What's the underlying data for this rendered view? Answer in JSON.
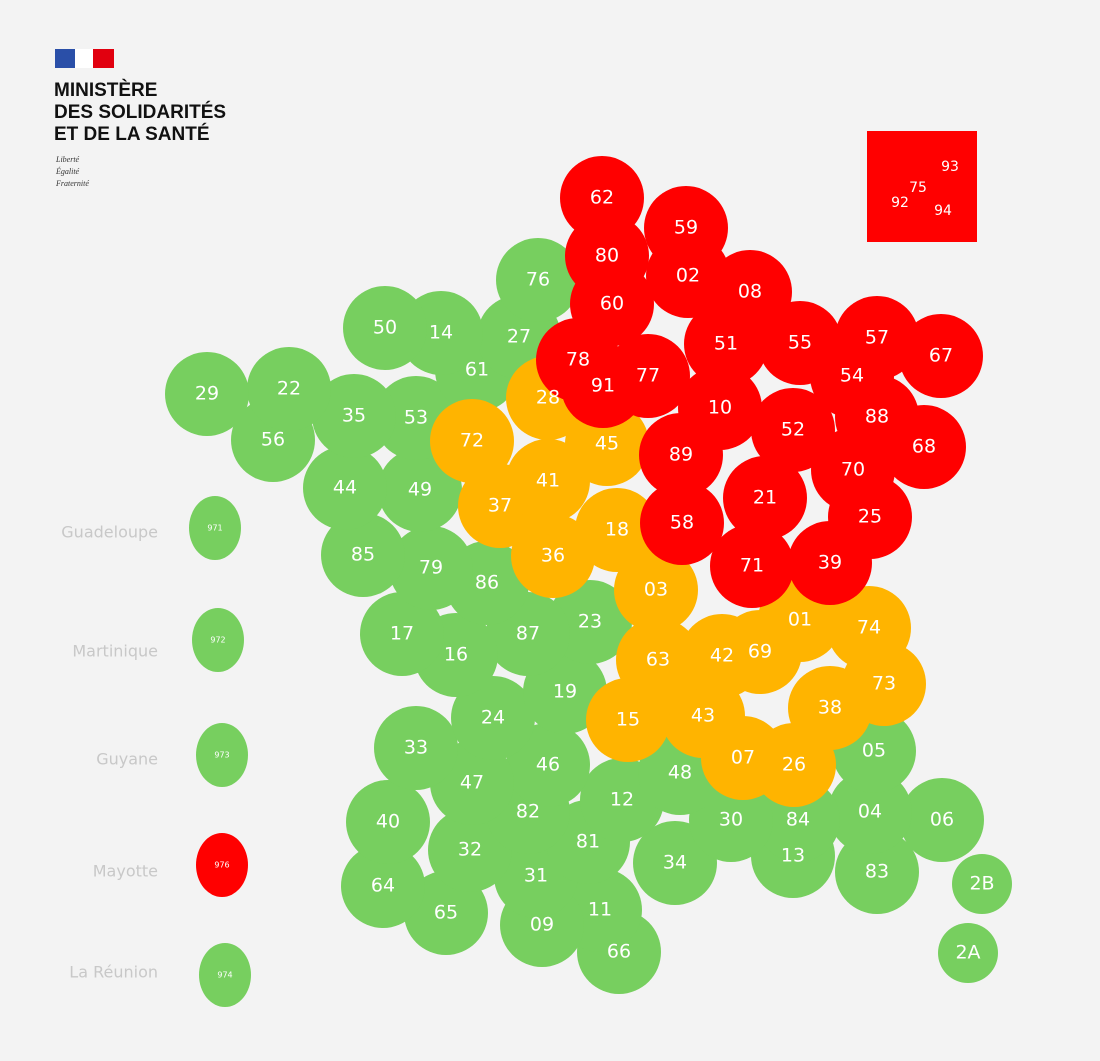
{
  "header": {
    "lines": [
      "MINISTÈRE",
      "DES SOLIDARITÉS",
      "ET DE LA SANTÉ"
    ],
    "motto": [
      "Liberté",
      "Égalité",
      "Fraternité"
    ]
  },
  "departments": [
    {
      "code": "62",
      "color": "#ff0000"
    },
    {
      "code": "59",
      "color": "#ff0000"
    },
    {
      "code": "80",
      "color": "#ff0000"
    },
    {
      "code": "02",
      "color": "#ff0000"
    },
    {
      "code": "60",
      "color": "#ff0000"
    },
    {
      "code": "08",
      "color": "#ff0000"
    },
    {
      "code": "57",
      "color": "#ff0000"
    },
    {
      "code": "67",
      "color": "#ff0000"
    },
    {
      "code": "51",
      "color": "#ff0000"
    },
    {
      "code": "55",
      "color": "#ff0000"
    },
    {
      "code": "54",
      "color": "#ff0000"
    },
    {
      "code": "78",
      "color": "#ff0000"
    },
    {
      "code": "91",
      "color": "#ff0000"
    },
    {
      "code": "77",
      "color": "#ff0000"
    },
    {
      "code": "10",
      "color": "#ff0000"
    },
    {
      "code": "52",
      "color": "#ff0000"
    },
    {
      "code": "88",
      "color": "#ff0000"
    },
    {
      "code": "68",
      "color": "#ff0000"
    },
    {
      "code": "89",
      "color": "#ff0000"
    },
    {
      "code": "70",
      "color": "#ff0000"
    },
    {
      "code": "21",
      "color": "#ff0000"
    },
    {
      "code": "25",
      "color": "#ff0000"
    },
    {
      "code": "58",
      "color": "#ff0000"
    },
    {
      "code": "71",
      "color": "#ff0000"
    },
    {
      "code": "39",
      "color": "#ff0000"
    },
    {
      "code": "93",
      "color": "#ff0000"
    },
    {
      "code": "75",
      "color": "#ff0000"
    },
    {
      "code": "92",
      "color": "#ff0000"
    },
    {
      "code": "94",
      "color": "#ff0000"
    },
    {
      "code": "28",
      "color": "#ffb400"
    },
    {
      "code": "72",
      "color": "#ffb400"
    },
    {
      "code": "45",
      "color": "#ffb400"
    },
    {
      "code": "41",
      "color": "#ffb400"
    },
    {
      "code": "37",
      "color": "#ffb400"
    },
    {
      "code": "18",
      "color": "#ffb400"
    },
    {
      "code": "36",
      "color": "#ffb400"
    },
    {
      "code": "03",
      "color": "#ffb400"
    },
    {
      "code": "01",
      "color": "#ffb400"
    },
    {
      "code": "74",
      "color": "#ffb400"
    },
    {
      "code": "63",
      "color": "#ffb400"
    },
    {
      "code": "42",
      "color": "#ffb400"
    },
    {
      "code": "69",
      "color": "#ffb400"
    },
    {
      "code": "73",
      "color": "#ffb400"
    },
    {
      "code": "15",
      "color": "#ffb400"
    },
    {
      "code": "43",
      "color": "#ffb400"
    },
    {
      "code": "38",
      "color": "#ffb400"
    },
    {
      "code": "07",
      "color": "#ffb400"
    },
    {
      "code": "26",
      "color": "#ffb400"
    },
    {
      "code": "76",
      "color": "#77cf5f"
    },
    {
      "code": "50",
      "color": "#77cf5f"
    },
    {
      "code": "14",
      "color": "#77cf5f"
    },
    {
      "code": "27",
      "color": "#77cf5f"
    },
    {
      "code": "61",
      "color": "#77cf5f"
    },
    {
      "code": "29",
      "color": "#77cf5f"
    },
    {
      "code": "22",
      "color": "#77cf5f"
    },
    {
      "code": "35",
      "color": "#77cf5f"
    },
    {
      "code": "53",
      "color": "#77cf5f"
    },
    {
      "code": "56",
      "color": "#77cf5f"
    },
    {
      "code": "44",
      "color": "#77cf5f"
    },
    {
      "code": "49",
      "color": "#77cf5f"
    },
    {
      "code": "85",
      "color": "#77cf5f"
    },
    {
      "code": "79",
      "color": "#77cf5f"
    },
    {
      "code": "86",
      "color": "#77cf5f"
    },
    {
      "code": "17",
      "color": "#77cf5f"
    },
    {
      "code": "16",
      "color": "#77cf5f"
    },
    {
      "code": "87",
      "color": "#77cf5f"
    },
    {
      "code": "23",
      "color": "#77cf5f"
    },
    {
      "code": "19",
      "color": "#77cf5f"
    },
    {
      "code": "24",
      "color": "#77cf5f"
    },
    {
      "code": "33",
      "color": "#77cf5f"
    },
    {
      "code": "47",
      "color": "#77cf5f"
    },
    {
      "code": "46",
      "color": "#77cf5f"
    },
    {
      "code": "48",
      "color": "#77cf5f"
    },
    {
      "code": "05",
      "color": "#77cf5f"
    },
    {
      "code": "12",
      "color": "#77cf5f"
    },
    {
      "code": "82",
      "color": "#77cf5f"
    },
    {
      "code": "40",
      "color": "#77cf5f"
    },
    {
      "code": "30",
      "color": "#77cf5f"
    },
    {
      "code": "84",
      "color": "#77cf5f"
    },
    {
      "code": "04",
      "color": "#77cf5f"
    },
    {
      "code": "06",
      "color": "#77cf5f"
    },
    {
      "code": "81",
      "color": "#77cf5f"
    },
    {
      "code": "32",
      "color": "#77cf5f"
    },
    {
      "code": "13",
      "color": "#77cf5f"
    },
    {
      "code": "34",
      "color": "#77cf5f"
    },
    {
      "code": "83",
      "color": "#77cf5f"
    },
    {
      "code": "31",
      "color": "#77cf5f"
    },
    {
      "code": "64",
      "color": "#77cf5f"
    },
    {
      "code": "65",
      "color": "#77cf5f"
    },
    {
      "code": "09",
      "color": "#77cf5f"
    },
    {
      "code": "11",
      "color": "#77cf5f"
    },
    {
      "code": "66",
      "color": "#77cf5f"
    },
    {
      "code": "2B",
      "color": "#77cf5f"
    },
    {
      "code": "2A",
      "color": "#77cf5f"
    }
  ],
  "overseas": [
    {
      "name": "Guadeloupe",
      "code": "971",
      "color": "#77cf5f"
    },
    {
      "name": "Martinique",
      "code": "972",
      "color": "#77cf5f"
    },
    {
      "name": "Guyane",
      "code": "973",
      "color": "#77cf5f"
    },
    {
      "name": "Mayotte",
      "code": "976",
      "color": "#ff0000"
    },
    {
      "name": "La Réunion",
      "code": "974",
      "color": "#77cf5f"
    }
  ]
}
